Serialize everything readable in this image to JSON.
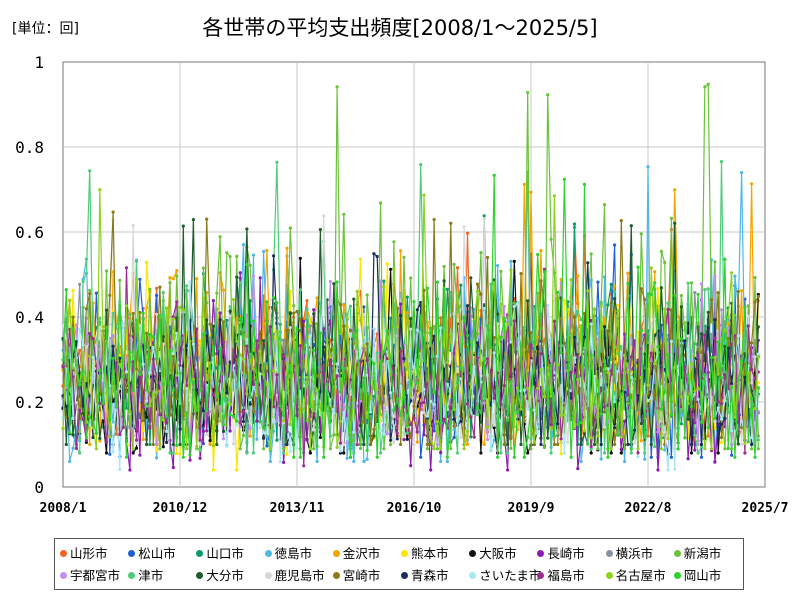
{
  "header": {
    "unit": "[単位：回]"
  },
  "chart_data": {
    "type": "line",
    "title": "各世帯の平均支出頻度[2008/1～2025/5]",
    "xlabel": "",
    "ylabel": "",
    "ylim": [
      0,
      1
    ],
    "y_ticks": [
      "0",
      "0.2",
      "0.4",
      "0.6",
      "0.8",
      "1"
    ],
    "x_ticks": [
      "2008/1",
      "2010/12",
      "2013/11",
      "2016/10",
      "2019/9",
      "2022/8",
      "2025/7"
    ],
    "x_range": [
      "2008/1",
      "2025/7"
    ],
    "grid": true,
    "legend_position": "bottom",
    "series": [
      {
        "name": "山形市",
        "color": "#f26522",
        "min": 0.12,
        "max": 0.62,
        "mean": 0.27
      },
      {
        "name": "松山市",
        "color": "#1f5fd6",
        "min": 0.07,
        "max": 0.57,
        "mean": 0.26
      },
      {
        "name": "山口市",
        "color": "#0a9b6b",
        "min": 0.1,
        "max": 0.64,
        "mean": 0.27
      },
      {
        "name": "徳島市",
        "color": "#4fb8e6",
        "min": 0.06,
        "max": 0.76,
        "mean": 0.26
      },
      {
        "name": "金沢市",
        "color": "#f5a300",
        "min": 0.1,
        "max": 0.72,
        "mean": 0.28
      },
      {
        "name": "熊本市",
        "color": "#ffe400",
        "min": 0.04,
        "max": 0.55,
        "mean": 0.26
      },
      {
        "name": "大阪市",
        "color": "#111111",
        "min": 0.08,
        "max": 0.54,
        "mean": 0.22
      },
      {
        "name": "長崎市",
        "color": "#8e1bb0",
        "min": 0.04,
        "max": 0.52,
        "mean": 0.24
      },
      {
        "name": "横浜市",
        "color": "#8892a3",
        "min": 0.1,
        "max": 0.48,
        "mean": 0.26
      },
      {
        "name": "新潟市",
        "color": "#6bc33a",
        "min": 0.09,
        "max": 0.95,
        "mean": 0.28
      },
      {
        "name": "宇都宮市",
        "color": "#c38ff0",
        "min": 0.1,
        "max": 0.5,
        "mean": 0.25
      },
      {
        "name": "津市",
        "color": "#4dcc7a",
        "min": 0.08,
        "max": 0.77,
        "mean": 0.27
      },
      {
        "name": "大分市",
        "color": "#1e5c2c",
        "min": 0.1,
        "max": 0.63,
        "mean": 0.26
      },
      {
        "name": "鹿児島市",
        "color": "#d8d8d8",
        "min": 0.1,
        "max": 0.64,
        "mean": 0.25
      },
      {
        "name": "宮崎市",
        "color": "#8a7a1a",
        "min": 0.1,
        "max": 0.65,
        "mean": 0.27
      },
      {
        "name": "青森市",
        "color": "#1a2e5a",
        "min": 0.1,
        "max": 0.55,
        "mean": 0.24
      },
      {
        "name": "さいたま市",
        "color": "#a8e8f5",
        "min": 0.04,
        "max": 0.5,
        "mean": 0.24
      },
      {
        "name": "福島市",
        "color": "#9b2f8f",
        "min": 0.05,
        "max": 0.52,
        "mean": 0.25
      },
      {
        "name": "名古屋市",
        "color": "#8fd11d",
        "min": 0.09,
        "max": 0.7,
        "mean": 0.27
      },
      {
        "name": "岡山市",
        "color": "#2fd12f",
        "min": 0.07,
        "max": 0.74,
        "mean": 0.27
      }
    ]
  }
}
